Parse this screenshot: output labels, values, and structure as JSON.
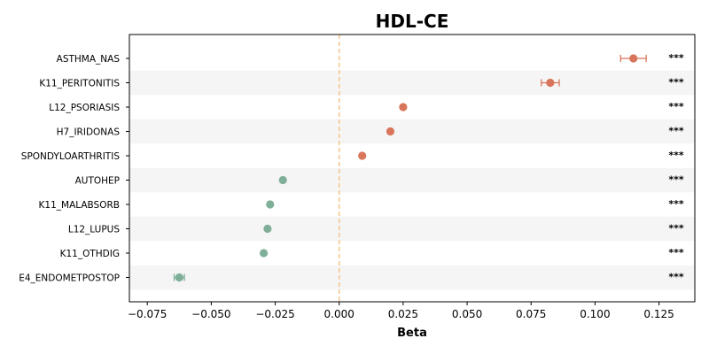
{
  "chart_data": {
    "type": "scatter",
    "title": "HDL-CE",
    "xlabel": "Beta",
    "ylabel": "",
    "xlim": [
      -0.082,
      0.139
    ],
    "xticks": [
      -0.075,
      -0.05,
      -0.025,
      0.0,
      0.025,
      0.05,
      0.075,
      0.1,
      0.125
    ],
    "xtick_labels": [
      "−0.075",
      "−0.050",
      "−0.025",
      "0.000",
      "0.025",
      "0.050",
      "0.075",
      "0.100",
      "0.125"
    ],
    "reference_line_x": 0,
    "categories": [
      "ASTHMA_NAS",
      "K11_PERITONITIS",
      "L12_PSORIASIS",
      "H7_IRIDONAS",
      "SPONDYLOARTHRITIS",
      "AUTOHEP",
      "K11_MALABSORB",
      "L12_LUPUS",
      "K11_OTHDIG",
      "E4_ENDOMETPOSTOP"
    ],
    "points": [
      {
        "label": "ASTHMA_NAS",
        "beta": 0.115,
        "ci_low": 0.11,
        "ci_high": 0.12,
        "significance": "***"
      },
      {
        "label": "K11_PERITONITIS",
        "beta": 0.0825,
        "ci_low": 0.079,
        "ci_high": 0.086,
        "significance": "***"
      },
      {
        "label": "L12_PSORIASIS",
        "beta": 0.025,
        "ci_low": 0.0245,
        "ci_high": 0.0255,
        "significance": "***"
      },
      {
        "label": "H7_IRIDONAS",
        "beta": 0.02,
        "ci_low": 0.0195,
        "ci_high": 0.0205,
        "significance": "***"
      },
      {
        "label": "SPONDYLOARTHRITIS",
        "beta": 0.009,
        "ci_low": 0.0085,
        "ci_high": 0.0095,
        "significance": "***"
      },
      {
        "label": "AUTOHEP",
        "beta": -0.022,
        "ci_low": -0.0225,
        "ci_high": -0.0215,
        "significance": "***"
      },
      {
        "label": "K11_MALABSORB",
        "beta": -0.027,
        "ci_low": -0.0275,
        "ci_high": -0.0265,
        "significance": "***"
      },
      {
        "label": "L12_LUPUS",
        "beta": -0.028,
        "ci_low": -0.0285,
        "ci_high": -0.0275,
        "significance": "***"
      },
      {
        "label": "K11_OTHDIG",
        "beta": -0.0295,
        "ci_low": -0.03,
        "ci_high": -0.029,
        "significance": "***"
      },
      {
        "label": "E4_ENDOMETPOSTOP",
        "beta": -0.0625,
        "ci_low": -0.0645,
        "ci_high": -0.0605,
        "significance": "***"
      }
    ],
    "colors": {
      "positive": "#d9755a",
      "negative": "#7faf98",
      "reference_line": "#f5c48c",
      "row_stripe": "#f5f5f5"
    },
    "grid": false,
    "legend": "none"
  }
}
